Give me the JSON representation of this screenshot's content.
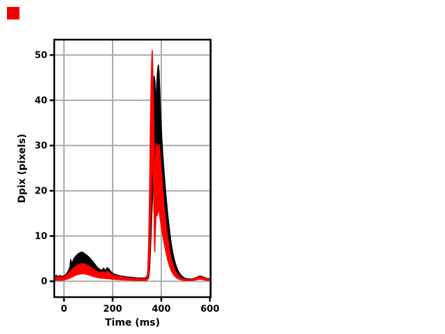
{
  "figure": {
    "background": "#ffffff",
    "marker_color": "#ee0000"
  },
  "chart_data": {
    "type": "line",
    "title": "",
    "xlabel": "Time (ms)",
    "ylabel": "Dpix (pixels)",
    "xticks": [
      0,
      200,
      400,
      600
    ],
    "yticks": [
      0,
      10,
      20,
      30,
      40,
      50
    ],
    "xlim": [
      -40,
      603
    ],
    "ylim": [
      -3.5,
      53.4
    ],
    "grid": true,
    "grid_color": "#ababab",
    "axis_color": "#000000",
    "legend": "none",
    "series": [
      {
        "name": "black-trace",
        "color": "#000000",
        "points": [
          [
            -40,
            0.9,
            0.2
          ],
          [
            -32,
            1.3,
            0.35
          ],
          [
            -24,
            1.0,
            0.3
          ],
          [
            -16,
            1.25,
            0.35
          ],
          [
            -8,
            1.1,
            0.3
          ],
          [
            0,
            1.15,
            0.35
          ],
          [
            8,
            1.5,
            0.5
          ],
          [
            16,
            2.1,
            0.7
          ],
          [
            24,
            3.0,
            1.0
          ],
          [
            28,
            4.8,
            1.3
          ],
          [
            32,
            3.6,
            1.5
          ],
          [
            38,
            4.7,
            1.9
          ],
          [
            45,
            5.3,
            2.2
          ],
          [
            55,
            5.9,
            2.5
          ],
          [
            65,
            6.3,
            2.7
          ],
          [
            75,
            6.45,
            2.75
          ],
          [
            85,
            6.1,
            2.7
          ],
          [
            95,
            5.7,
            2.5
          ],
          [
            105,
            5.2,
            2.3
          ],
          [
            115,
            4.6,
            2.05
          ],
          [
            125,
            3.9,
            1.75
          ],
          [
            135,
            3.2,
            1.45
          ],
          [
            145,
            2.7,
            1.2
          ],
          [
            155,
            2.4,
            1.05
          ],
          [
            163,
            2.9,
            0.95
          ],
          [
            170,
            2.3,
            0.9
          ],
          [
            178,
            3.0,
            0.85
          ],
          [
            186,
            2.6,
            0.8
          ],
          [
            194,
            2.0,
            0.7
          ],
          [
            205,
            1.6,
            0.6
          ],
          [
            220,
            1.35,
            0.5
          ],
          [
            240,
            1.1,
            0.4
          ],
          [
            260,
            0.95,
            0.33
          ],
          [
            280,
            0.85,
            0.3
          ],
          [
            300,
            0.75,
            0.27
          ],
          [
            320,
            0.7,
            0.25
          ],
          [
            336,
            0.72,
            0.25
          ],
          [
            343,
            1.3,
            0.35
          ],
          [
            348,
            5,
            0.8
          ],
          [
            352,
            14,
            3
          ],
          [
            356,
            24,
            8
          ],
          [
            360,
            32,
            14
          ],
          [
            364,
            39,
            19
          ],
          [
            368,
            43,
            22
          ],
          [
            371,
            45.3,
            23
          ],
          [
            374,
            44,
            24
          ],
          [
            377,
            37,
            22
          ],
          [
            380,
            42,
            24
          ],
          [
            384,
            46,
            25.5
          ],
          [
            388,
            47.8,
            27
          ],
          [
            391,
            46,
            25.5
          ],
          [
            394,
            41.5,
            23.5
          ],
          [
            398,
            36,
            21
          ],
          [
            402,
            31.5,
            19
          ],
          [
            406,
            28,
            17
          ],
          [
            412,
            23.5,
            14.5
          ],
          [
            418,
            19.5,
            12
          ],
          [
            425,
            15.5,
            9.5
          ],
          [
            432,
            12,
            7
          ],
          [
            440,
            8.5,
            5
          ],
          [
            448,
            6,
            3.4
          ],
          [
            456,
            4.2,
            2.3
          ],
          [
            464,
            2.9,
            1.5
          ],
          [
            472,
            2.0,
            1.0
          ],
          [
            480,
            1.4,
            0.65
          ],
          [
            490,
            0.9,
            0.42
          ],
          [
            500,
            0.6,
            0.28
          ],
          [
            512,
            0.5,
            0.22
          ],
          [
            524,
            0.5,
            0.22
          ],
          [
            536,
            0.65,
            0.3
          ],
          [
            548,
            0.95,
            0.45
          ],
          [
            558,
            1.15,
            0.55
          ],
          [
            568,
            1.05,
            0.5
          ],
          [
            578,
            0.8,
            0.38
          ],
          [
            588,
            0.6,
            0.28
          ],
          [
            600,
            0.55,
            0.25
          ]
        ]
      },
      {
        "name": "red-trace",
        "color": "#ff0000",
        "points": [
          [
            -40,
            0.7,
            0.12
          ],
          [
            -32,
            1.0,
            0.25
          ],
          [
            -24,
            0.85,
            0.2
          ],
          [
            -16,
            1.0,
            0.25
          ],
          [
            -8,
            0.9,
            0.22
          ],
          [
            0,
            0.95,
            0.28
          ],
          [
            8,
            1.25,
            0.4
          ],
          [
            16,
            1.7,
            0.55
          ],
          [
            24,
            2.1,
            0.75
          ],
          [
            32,
            2.5,
            0.95
          ],
          [
            40,
            2.95,
            1.15
          ],
          [
            50,
            3.35,
            1.4
          ],
          [
            60,
            3.65,
            1.55
          ],
          [
            70,
            3.85,
            1.65
          ],
          [
            80,
            3.9,
            1.7
          ],
          [
            90,
            3.7,
            1.6
          ],
          [
            100,
            3.45,
            1.45
          ],
          [
            110,
            3.1,
            1.3
          ],
          [
            120,
            2.7,
            1.1
          ],
          [
            130,
            2.35,
            0.95
          ],
          [
            140,
            2.05,
            0.8
          ],
          [
            150,
            1.9,
            0.72
          ],
          [
            160,
            2.1,
            0.68
          ],
          [
            170,
            1.8,
            0.62
          ],
          [
            178,
            2.2,
            0.6
          ],
          [
            186,
            1.95,
            0.56
          ],
          [
            195,
            1.55,
            0.5
          ],
          [
            210,
            1.25,
            0.42
          ],
          [
            230,
            1.0,
            0.35
          ],
          [
            250,
            0.85,
            0.28
          ],
          [
            270,
            0.72,
            0.24
          ],
          [
            290,
            0.62,
            0.2
          ],
          [
            310,
            0.55,
            0.18
          ],
          [
            330,
            0.52,
            0.17
          ],
          [
            340,
            0.62,
            0.2
          ],
          [
            344,
            1.6,
            0.45
          ],
          [
            348,
            8,
            1.5
          ],
          [
            352,
            20,
            5
          ],
          [
            355,
            33,
            11
          ],
          [
            358,
            43,
            19
          ],
          [
            361,
            49,
            26
          ],
          [
            363,
            51,
            30
          ],
          [
            365,
            47,
            27
          ],
          [
            368,
            39,
            21
          ],
          [
            371,
            30,
            13
          ],
          [
            373,
            15,
            6.5
          ],
          [
            376,
            26,
            12
          ],
          [
            379,
            30.5,
            15.5
          ],
          [
            383,
            29,
            14.5
          ],
          [
            387,
            30,
            15.5
          ],
          [
            391,
            30.2,
            15.8
          ],
          [
            395,
            28,
            14
          ],
          [
            399,
            25,
            12.5
          ],
          [
            403,
            22,
            11
          ],
          [
            408,
            18.8,
            9.5
          ],
          [
            414,
            15.2,
            7.8
          ],
          [
            420,
            12.2,
            6.2
          ],
          [
            427,
            9.2,
            4.6
          ],
          [
            434,
            6.8,
            3.3
          ],
          [
            442,
            4.7,
            2.2
          ],
          [
            450,
            3.2,
            1.5
          ],
          [
            458,
            2.2,
            1.0
          ],
          [
            466,
            1.5,
            0.65
          ],
          [
            475,
            0.95,
            0.42
          ],
          [
            485,
            0.6,
            0.27
          ],
          [
            495,
            0.42,
            0.18
          ],
          [
            508,
            0.35,
            0.15
          ],
          [
            520,
            0.35,
            0.15
          ],
          [
            533,
            0.5,
            0.22
          ],
          [
            545,
            0.75,
            0.35
          ],
          [
            557,
            1.0,
            0.48
          ],
          [
            567,
            0.9,
            0.43
          ],
          [
            578,
            0.68,
            0.3
          ],
          [
            590,
            0.48,
            0.2
          ],
          [
            600,
            0.42,
            0.18
          ]
        ]
      }
    ]
  }
}
